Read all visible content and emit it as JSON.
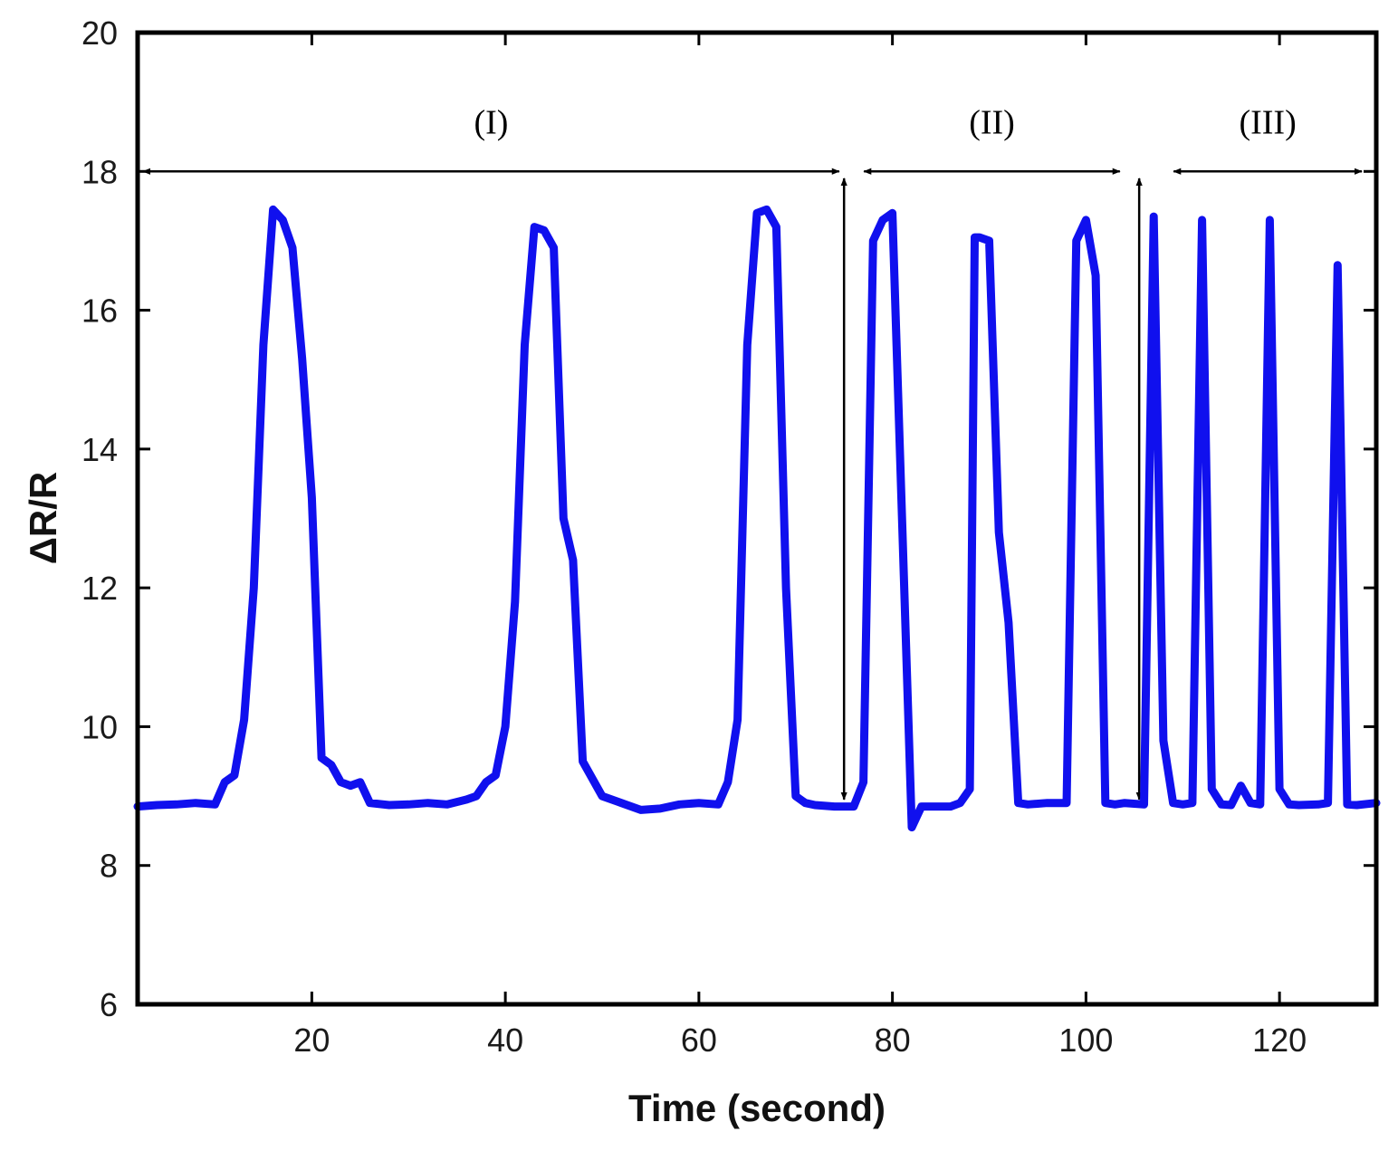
{
  "chart_data": {
    "type": "line",
    "title": "",
    "xlabel": "Time (second)",
    "ylabel": "ΔR/R",
    "xlim": [
      2,
      130
    ],
    "ylim": [
      6,
      20
    ],
    "xticks": [
      20,
      40,
      60,
      80,
      100,
      120
    ],
    "yticks": [
      6,
      8,
      10,
      12,
      14,
      16,
      18,
      20
    ],
    "grid": false,
    "series": [
      {
        "name": "ΔR/R",
        "color": "#1010ee",
        "x": [
          2,
          4,
          6,
          8,
          10,
          11,
          12,
          13,
          14,
          15,
          16,
          17,
          18,
          19,
          20,
          21,
          22,
          23,
          24,
          25,
          26,
          28,
          30,
          32,
          34,
          36,
          37,
          38,
          39,
          40,
          41,
          42,
          43,
          44,
          45,
          46,
          47,
          48,
          50,
          52,
          54,
          56,
          58,
          60,
          62,
          63,
          64,
          65,
          66,
          67,
          68,
          69,
          70,
          71,
          72,
          74,
          76,
          77,
          78,
          79,
          80,
          82,
          83,
          84,
          86,
          87,
          88,
          88.5,
          89,
          90,
          91,
          92,
          93,
          94,
          96,
          98,
          99,
          100,
          101,
          102,
          103,
          104,
          106,
          107,
          108,
          109,
          110,
          111,
          112,
          113,
          114,
          115,
          116,
          117,
          118,
          119,
          120,
          121,
          122,
          124,
          125,
          126,
          127,
          128,
          130
        ],
        "values": [
          8.85,
          8.87,
          8.88,
          8.9,
          8.88,
          9.2,
          9.3,
          10.1,
          12.0,
          15.5,
          17.45,
          17.3,
          16.9,
          15.3,
          13.3,
          9.55,
          9.45,
          9.2,
          9.15,
          9.2,
          8.9,
          8.87,
          8.88,
          8.9,
          8.88,
          8.95,
          9.0,
          9.2,
          9.3,
          10.0,
          11.8,
          15.5,
          17.2,
          17.15,
          16.9,
          13.0,
          12.4,
          9.5,
          9.0,
          8.9,
          8.8,
          8.82,
          8.88,
          8.9,
          8.88,
          9.2,
          10.1,
          15.5,
          17.4,
          17.45,
          17.2,
          12.0,
          9.0,
          8.9,
          8.87,
          8.85,
          8.85,
          9.2,
          17.0,
          17.3,
          17.4,
          8.55,
          8.85,
          8.85,
          8.85,
          8.9,
          9.1,
          17.05,
          17.05,
          17.0,
          12.8,
          11.5,
          8.9,
          8.88,
          8.9,
          8.9,
          17.0,
          17.3,
          16.5,
          8.9,
          8.88,
          8.9,
          8.88,
          17.35,
          9.8,
          8.9,
          8.88,
          8.9,
          17.3,
          9.1,
          8.88,
          8.87,
          9.15,
          8.9,
          8.88,
          17.3,
          9.1,
          8.88,
          8.87,
          8.88,
          8.9,
          16.65,
          8.88,
          8.87,
          8.9
        ]
      }
    ],
    "annotations": [
      {
        "label": "(I)",
        "x_start": 2,
        "x_end": 74.5,
        "y": 18
      },
      {
        "label": "(II)",
        "x_start": 76.5,
        "x_end": 103.5,
        "y": 18
      },
      {
        "label": "(III)",
        "x_start": 108.5,
        "x_end": 128.5,
        "y": 18
      }
    ],
    "vertical_arrows": [
      {
        "x": 75,
        "y_top": 17.9,
        "y_bottom": 8.95
      },
      {
        "x": 105.5,
        "y_top": 17.9,
        "y_bottom": 8.95
      }
    ]
  }
}
